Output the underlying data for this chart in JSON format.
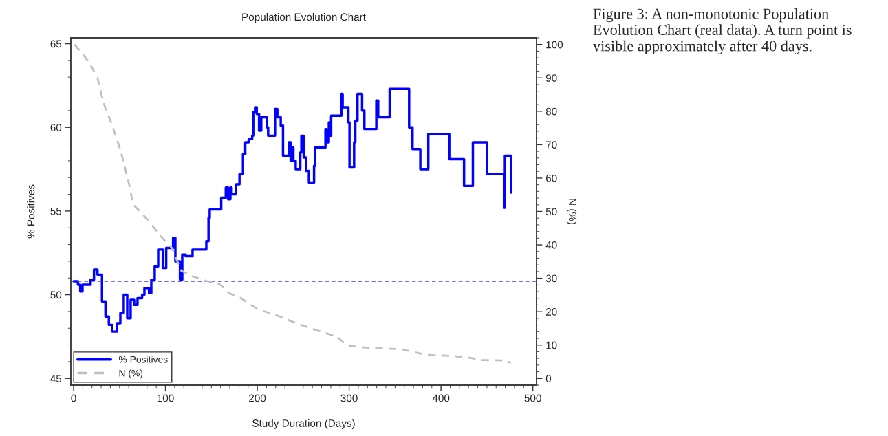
{
  "chart_data": {
    "type": "line",
    "title": "Population Evolution Chart",
    "xlabel": "Study Duration (Days)",
    "ylabel": "% Positives",
    "y2label": "N (%)",
    "xlim": [
      -3,
      504
    ],
    "xticks": [
      0,
      100,
      200,
      300,
      400,
      500
    ],
    "ylim": [
      44.6,
      65.35
    ],
    "yticks": [
      45,
      50,
      55,
      60,
      65
    ],
    "y2lim": [
      -2,
      102
    ],
    "y2ticks": [
      0,
      10,
      20,
      30,
      40,
      50,
      60,
      70,
      80,
      90,
      100
    ],
    "legend": "bottom left",
    "grid": false,
    "series": [
      {
        "name": "% Positives",
        "type": "step",
        "color": "#0000ff",
        "line_style": "solid",
        "x": [
          0,
          4.7,
          7.2,
          9.7,
          18.5,
          22.2,
          26,
          30.9,
          34.7,
          38.4,
          42.1,
          47.2,
          50.9,
          54.6,
          58.4,
          62.1,
          65.9,
          69.6,
          74.6,
          77.1,
          82.1,
          84.6,
          88.3,
          92.1,
          97.1,
          100.8,
          108.3,
          110.8,
          115.8,
          118.3,
          122,
          129.5,
          144.5,
          146.9,
          148.2,
          160.7,
          165.7,
          168.2,
          170.7,
          172,
          176.9,
          180.6,
          184.4,
          186.9,
          190.6,
          194.4,
          195.6,
          197.6,
          199.4,
          201.9,
          204.3,
          210.6,
          211.8,
          219.3,
          221.8,
          225.5,
          228,
          234.3,
          236.3,
          238,
          239.3,
          241.8,
          246.8,
          248,
          250.5,
          253,
          256.2,
          261.8,
          263,
          274.2,
          275.4,
          277.9,
          279.2,
          280.4,
          291.6,
          292.9,
          299.2,
          300.4,
          305.4,
          306.7,
          309.1,
          314.1,
          316.6,
          329.6,
          331.6,
          344.1,
          365.3,
          369,
          377.5,
          386.2,
          409,
          425.1,
          434.7,
          450.1,
          468.8,
          469.6,
          476.3
        ],
        "values": [
          50.8,
          50.6,
          50.2,
          50.6,
          50.9,
          51.5,
          51.2,
          49.6,
          48.7,
          48.2,
          47.8,
          48.3,
          48.9,
          50.0,
          48.6,
          49.7,
          49.4,
          49.8,
          50.0,
          50.4,
          50.1,
          50.9,
          51.7,
          52.7,
          51.6,
          52.8,
          53.4,
          52.0,
          50.9,
          52.4,
          52.3,
          52.7,
          53.2,
          54.6,
          55.1,
          55.8,
          56.4,
          55.7,
          56.4,
          56.0,
          56.6,
          57.2,
          58.4,
          59.1,
          59.3,
          59.5,
          60.9,
          61.2,
          60.8,
          59.8,
          60.6,
          60.0,
          59.5,
          61.1,
          60.6,
          60.1,
          58.3,
          59.1,
          58.0,
          58.8,
          58.0,
          57.5,
          58.5,
          59.5,
          58.2,
          57.4,
          56.7,
          57.7,
          58.8,
          59.9,
          59.1,
          60.3,
          59.5,
          60.7,
          62.0,
          61.2,
          60.3,
          57.6,
          59.1,
          60.4,
          62.0,
          61.0,
          59.9,
          61.6,
          60.6,
          62.3,
          60.0,
          58.7,
          57.5,
          59.6,
          58.1,
          56.5,
          59.1,
          57.2,
          55.2,
          58.3,
          56.1
        ]
      },
      {
        "name": "N (%)",
        "type": "line",
        "axis": "y2",
        "color": "#c0c0c0",
        "line_style": "dashed",
        "x": [
          1,
          9.7,
          17.2,
          26,
          29.7,
          34.7,
          40.9,
          45.9,
          50.9,
          55.9,
          60.9,
          64.6,
          74.6,
          87.1,
          97.1,
          107,
          117,
          129.5,
          144.5,
          159.4,
          169.4,
          181.9,
          200.6,
          219.3,
          241.8,
          264,
          286.7,
          298,
          324,
          339,
          356.5,
          364,
          376.5,
          389,
          414,
          431.4,
          443.9,
          468.8,
          476.3
        ],
        "values": [
          100,
          97.2,
          94.5,
          90.0,
          85.6,
          80.8,
          76.7,
          72.6,
          68.5,
          63.1,
          57.6,
          52.1,
          49.4,
          45.3,
          41.9,
          39.1,
          32.3,
          30.6,
          29.2,
          28.2,
          25.5,
          24.1,
          20.7,
          19.1,
          16.6,
          14.5,
          12.5,
          9.8,
          9.1,
          9.0,
          8.8,
          8.3,
          7.5,
          7.0,
          6.7,
          6.2,
          5.5,
          5.4,
          4.7
        ]
      }
    ],
    "ref_lines": [
      {
        "axis": "y",
        "value": 50.8,
        "color": "#4040ff",
        "line_style": "dashed"
      }
    ],
    "annotations": [
      "Figure 3: A non-monotonic Population Evolution Chart (real data). A turn point is visible approximately after 40 days."
    ]
  }
}
